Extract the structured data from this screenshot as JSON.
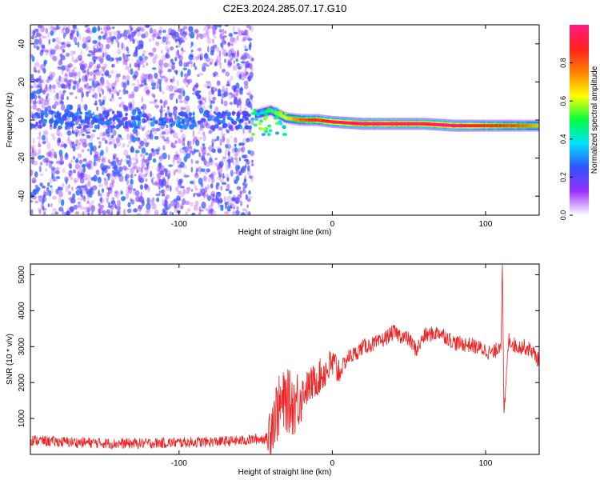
{
  "title": "C2E3.2024.285.07.17.G10",
  "chart_data": [
    {
      "type": "heatmap",
      "name": "spectrogram",
      "xlabel": "Height of straight line (km)",
      "ylabel": "Frequency (Hz)",
      "xlim": [
        -197,
        135
      ],
      "ylim": [
        -50,
        50
      ],
      "xticks": [
        -100,
        0,
        100
      ],
      "xtick_labels": [
        "-100",
        "0",
        "100"
      ],
      "yticks": [
        -40,
        -20,
        0,
        20,
        40
      ],
      "ytick_labels": [
        "-40",
        "-20",
        "0",
        "20",
        "40"
      ],
      "colorbar": {
        "label": "Normalized spectral amplitude",
        "range": [
          0,
          1
        ],
        "ticks": [
          0,
          0.2,
          0.4,
          0.6,
          0.8
        ],
        "tick_labels": [
          "0.0",
          "0.2",
          "0.4",
          "0.6",
          "0.8"
        ],
        "colors": [
          "#ffffff",
          "#9b30ff",
          "#3050ff",
          "#00e0ff",
          "#00ff40",
          "#ffff00",
          "#ff8000",
          "#ff2020",
          "#ff1a80"
        ]
      },
      "noise_region_x": [
        -197,
        -52
      ],
      "signal_track": [
        {
          "x": -50,
          "freq": 3,
          "amp": 0.25
        },
        {
          "x": -40,
          "freq": 5,
          "amp": 0.45
        },
        {
          "x": -30,
          "freq": 1,
          "amp": 0.55
        },
        {
          "x": -20,
          "freq": 0,
          "amp": 0.7
        },
        {
          "x": -10,
          "freq": 0,
          "amp": 0.75
        },
        {
          "x": 0,
          "freq": -1,
          "amp": 0.8
        },
        {
          "x": 20,
          "freq": -2,
          "amp": 0.9
        },
        {
          "x": 40,
          "freq": -2,
          "amp": 0.9
        },
        {
          "x": 60,
          "freq": -2,
          "amp": 0.85
        },
        {
          "x": 80,
          "freq": -3,
          "amp": 0.9
        },
        {
          "x": 100,
          "freq": -3,
          "amp": 0.75
        },
        {
          "x": 120,
          "freq": -3,
          "amp": 0.7
        },
        {
          "x": 135,
          "freq": -3,
          "amp": 0.6
        }
      ]
    },
    {
      "type": "line",
      "name": "snr",
      "xlabel": "Height of straight line (km)",
      "ylabel": "SNR (10 * v/v)",
      "xlim": [
        -197,
        135
      ],
      "ylim": [
        0,
        5300
      ],
      "xticks": [
        -100,
        0,
        100
      ],
      "xtick_labels": [
        "-100",
        "0",
        "100"
      ],
      "yticks": [
        1000,
        2000,
        3000,
        4000,
        5000
      ],
      "ytick_labels": [
        "1000",
        "2000",
        "3000",
        "4000",
        "5000"
      ],
      "color": "#ee2222",
      "series": [
        {
          "name": "SNR",
          "x": [
            -197,
            -180,
            -160,
            -140,
            -120,
            -100,
            -80,
            -60,
            -50,
            -42,
            -40,
            -35,
            -30,
            -25,
            -20,
            -15,
            -10,
            -5,
            0,
            5,
            10,
            15,
            20,
            30,
            40,
            50,
            55,
            60,
            70,
            80,
            90,
            100,
            105,
            110,
            111,
            112,
            115,
            120,
            125,
            130,
            135
          ],
          "y": [
            400,
            350,
            330,
            300,
            310,
            330,
            350,
            380,
            420,
            450,
            900,
            1300,
            1500,
            1400,
            1700,
            1900,
            2100,
            2300,
            2500,
            2300,
            2700,
            2800,
            3000,
            3100,
            3400,
            3200,
            2900,
            3300,
            3400,
            3100,
            3050,
            2900,
            2800,
            3100,
            5300,
            1000,
            3200,
            3000,
            3000,
            2900,
            2600
          ]
        }
      ]
    }
  ]
}
